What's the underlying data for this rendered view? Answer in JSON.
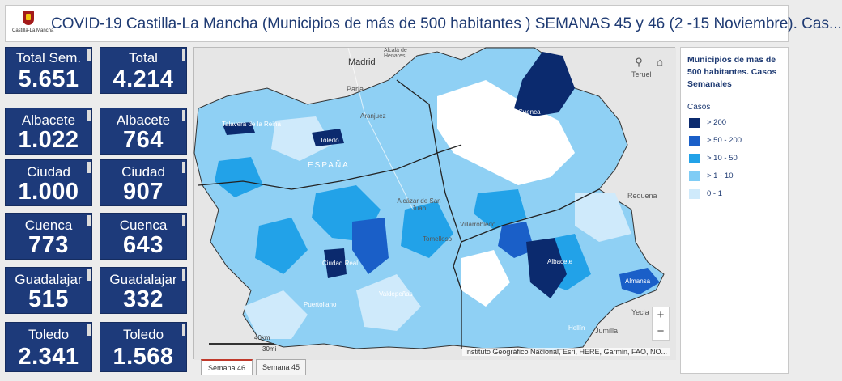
{
  "header": {
    "logo_text": "Castilla-La Mancha",
    "title": "COVID-19 Castilla-La Mancha (Municipios de más de 500 habitantes ) SEMANAS 45 y 46 (2 -15 Noviembre). Cas..."
  },
  "kpis": [
    {
      "label": "Total Sem.",
      "value": "5.651"
    },
    {
      "label": "Total",
      "value": "4.214"
    },
    {
      "label": "Albacete",
      "value": "1.022"
    },
    {
      "label": "Albacete",
      "value": "764"
    },
    {
      "label": "Ciudad",
      "value": "1.000"
    },
    {
      "label": "Ciudad",
      "value": "907"
    },
    {
      "label": "Cuenca",
      "value": "773"
    },
    {
      "label": "Cuenca",
      "value": "643"
    },
    {
      "label": "Guadalajar",
      "value": "515"
    },
    {
      "label": "Guadalajar",
      "value": "332"
    },
    {
      "label": "Toledo",
      "value": "2.341"
    },
    {
      "label": "Toledo",
      "value": "1.568"
    }
  ],
  "map": {
    "places": {
      "madrid": "Madrid",
      "alcala": "Alcalá de Henares",
      "parla": "Parla",
      "teruel": "Teruel",
      "requena": "Requena",
      "yecla": "Yecla",
      "jumilla": "Jumilla",
      "espana": "ESPAÑA",
      "talavera": "Talavera de la Reina",
      "toledo": "Toledo",
      "aranjuez": "Aranjuez",
      "cuenca": "Cuenca",
      "alcazar": "Alcázar de San Juan",
      "tomelloso": "Tomelloso",
      "villarrobledo": "Villarrobledo",
      "ciudad_real": "Ciudad Real",
      "puertollano": "Puertollano",
      "valdepenas": "Valdepeñas",
      "albacete": "Albacete",
      "almansa": "Almansa",
      "hellin": "Hellín"
    },
    "scale_km": "40km",
    "scale_mi": "30mi",
    "attribution": "Instituto Geográfico Nacional, Esri, HERE, Garmin, FAO, NO...",
    "zoom_in": "+",
    "zoom_out": "−",
    "search_icon": "search-icon",
    "home_icon": "home-icon"
  },
  "legend": {
    "title": "Municipios de mas de 500 habitantes. Casos Semanales",
    "subtitle": "Casos",
    "items": [
      {
        "label": "> 200",
        "color": "#0b2a6e"
      },
      {
        "label": "> 50 - 200",
        "color": "#1a5fc8"
      },
      {
        "label": "> 10 - 50",
        "color": "#22a2e8"
      },
      {
        "label": "> 1 - 10",
        "color": "#7fccf5"
      },
      {
        "label": "0 - 1",
        "color": "#cfeafb"
      }
    ]
  },
  "tabs": [
    {
      "label": "Semana 46",
      "active": true
    },
    {
      "label": "Semana 45",
      "active": false
    }
  ]
}
